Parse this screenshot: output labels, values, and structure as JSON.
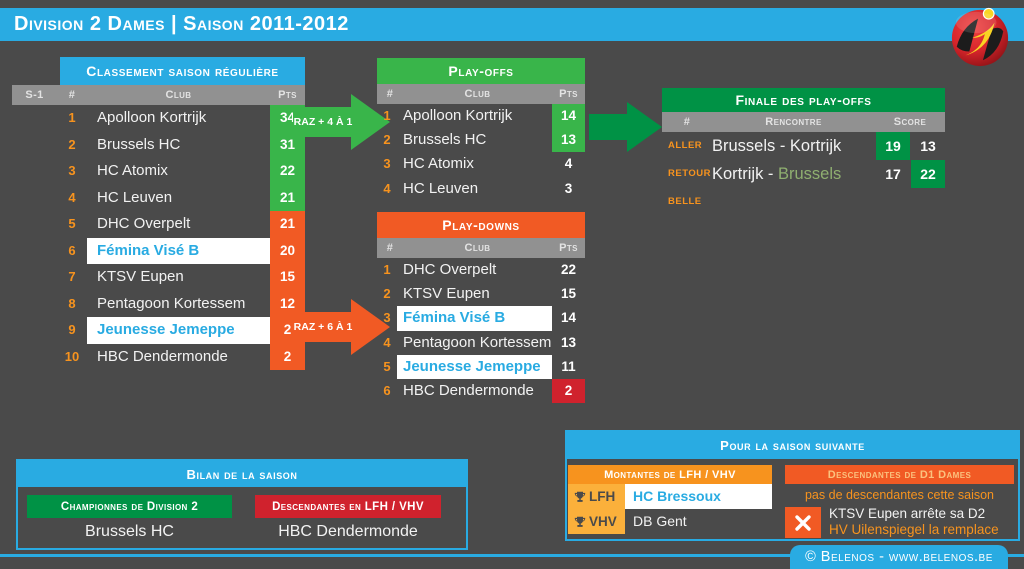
{
  "title_bar": {
    "title": "Division 2 Dames | Saison 2011-2012"
  },
  "logo": {
    "icon": "belenos-logo"
  },
  "colors": {
    "background": "#4A4A4A",
    "cyan": "#29ABE2",
    "green": "#39B54A",
    "dark_green": "#009245",
    "orange": "#F15A24",
    "light_orange": "#F7931E",
    "yellow": "#FBB03B",
    "red": "#D0222D",
    "gray_header": "#919191",
    "highlight_text": "#29ABE2",
    "winner_text": "#8FAF70"
  },
  "classement": {
    "title": "Classement saison régulière",
    "columns": {
      "prev": "S-1",
      "rank": "#",
      "club": "Club",
      "pts": "Pts"
    },
    "rows": [
      {
        "prev": "",
        "rank": "1",
        "club": "Apolloon Kortrijk",
        "pts": "34",
        "zone": "green",
        "highlight": false
      },
      {
        "prev": "",
        "rank": "2",
        "club": "Brussels HC",
        "pts": "31",
        "zone": "green",
        "highlight": false
      },
      {
        "prev": "",
        "rank": "3",
        "club": "HC Atomix",
        "pts": "22",
        "zone": "green",
        "highlight": false
      },
      {
        "prev": "",
        "rank": "4",
        "club": "HC Leuven",
        "pts": "21",
        "zone": "green",
        "highlight": false
      },
      {
        "prev": "",
        "rank": "5",
        "club": "DHC Overpelt",
        "pts": "21",
        "zone": "orange",
        "highlight": false
      },
      {
        "prev": "",
        "rank": "6",
        "club": "Fémina Visé B",
        "pts": "20",
        "zone": "orange",
        "highlight": true
      },
      {
        "prev": "",
        "rank": "7",
        "club": "KTSV Eupen",
        "pts": "15",
        "zone": "orange",
        "highlight": false
      },
      {
        "prev": "",
        "rank": "8",
        "club": "Pentagoon Kortessem",
        "pts": "12",
        "zone": "orange",
        "highlight": false
      },
      {
        "prev": "",
        "rank": "9",
        "club": "Jeunesse Jemeppe",
        "pts": "2",
        "zone": "orange",
        "highlight": true
      },
      {
        "prev": "",
        "rank": "10",
        "club": "HBC Dendermonde",
        "pts": "2",
        "zone": "orange",
        "highlight": false
      }
    ]
  },
  "playoffs": {
    "title": "Play-offs",
    "arrow_label": "RAZ + 4 À 1",
    "columns": {
      "rank": "#",
      "club": "Club",
      "pts": "Pts"
    },
    "rows": [
      {
        "rank": "1",
        "club": "Apolloon Kortrijk",
        "pts": "14",
        "box": "green"
      },
      {
        "rank": "2",
        "club": "Brussels HC",
        "pts": "13",
        "box": "green"
      },
      {
        "rank": "3",
        "club": "HC Atomix",
        "pts": "4",
        "box": ""
      },
      {
        "rank": "4",
        "club": "HC Leuven",
        "pts": "3",
        "box": ""
      }
    ]
  },
  "playdowns": {
    "title": "Play-downs",
    "arrow_label": "RAZ + 6 À 1",
    "columns": {
      "rank": "#",
      "club": "Club",
      "pts": "Pts"
    },
    "rows": [
      {
        "rank": "1",
        "club": "DHC Overpelt",
        "pts": "22",
        "box": "",
        "highlight": false
      },
      {
        "rank": "2",
        "club": "KTSV Eupen",
        "pts": "15",
        "box": "",
        "highlight": false
      },
      {
        "rank": "3",
        "club": "Fémina Visé B",
        "pts": "14",
        "box": "",
        "highlight": true
      },
      {
        "rank": "4",
        "club": "Pentagoon Kortessem",
        "pts": "13",
        "box": "",
        "highlight": false
      },
      {
        "rank": "5",
        "club": "Jeunesse Jemeppe",
        "pts": "11",
        "box": "",
        "highlight": true
      },
      {
        "rank": "6",
        "club": "HBC Dendermonde",
        "pts": "2",
        "box": "red",
        "highlight": false
      }
    ]
  },
  "finale": {
    "title": "Finale des play-offs",
    "columns": {
      "num": "#",
      "match": "Rencontre",
      "score": "Score"
    },
    "rows": [
      {
        "label": "ALLER",
        "segments": [
          {
            "text": "Brussels - Kortrijk",
            "win": false
          }
        ],
        "scores": [
          {
            "value": "19",
            "win": true
          },
          {
            "value": "13",
            "win": false
          }
        ]
      },
      {
        "label": "RETOUR",
        "segments": [
          {
            "text": "Kortrijk - ",
            "win": false
          },
          {
            "text": "Brussels",
            "win": true
          }
        ],
        "scores": [
          {
            "value": "17",
            "win": false
          },
          {
            "value": "22",
            "win": true
          }
        ]
      },
      {
        "label": "BELLE",
        "segments": [],
        "scores": []
      }
    ]
  },
  "bilan": {
    "title": "Bilan de la saison",
    "champion_label": "Championnes de Division 2",
    "champion_club": "Brussels HC",
    "relegated_label": "Descendantes en LFH / VHV",
    "relegated_club": "HBC Dendermonde"
  },
  "next_season": {
    "title": "Pour la saison suivante",
    "promoted_header": "Montantes de LFH / VHV",
    "promoted_rows": [
      {
        "league": "LFH",
        "icon": "trophy-icon",
        "club": "HC Bressoux",
        "promoted": true
      },
      {
        "league": "VHV",
        "icon": "trophy-icon",
        "club": "DB Gent",
        "promoted": false
      }
    ],
    "relegated_header": "Descendantes de D1 Dames",
    "relegated_note": "pas de descendantes cette saison",
    "withdrawal_icon": "x-icon",
    "withdrawal_line1": "KTSV Eupen arrête sa D2",
    "withdrawal_line2": "HV Uilenspiegel la remplace"
  },
  "footer": {
    "credit": "© Belenos - www.belenos.be"
  }
}
